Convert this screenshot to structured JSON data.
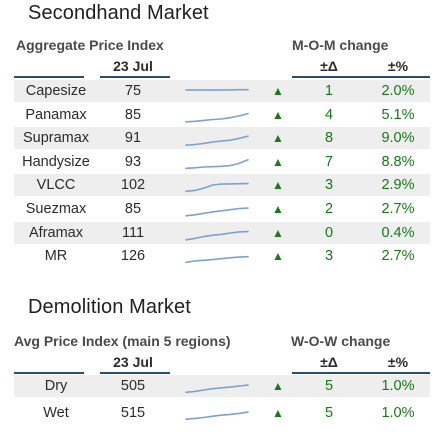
{
  "colors": {
    "header_rule": "#2a4d72",
    "positive": "#157a15",
    "spark": "#7fa1cf",
    "row_shade": "#eeeeee"
  },
  "secondhand": {
    "title": "Secondhand Market",
    "index_header": "Aggregate Price Index",
    "change_header": "M-O-M change",
    "date": "23 Jul",
    "delta_header": "±Δ",
    "pct_header": "±%",
    "rows": [
      {
        "name": "Capesize",
        "index": "75",
        "trend": "up",
        "delta": "1",
        "pct": "2.0%",
        "spark": [
          0.55,
          0.56,
          0.56,
          0.55,
          0.56,
          0.56,
          0.57,
          0.57
        ]
      },
      {
        "name": "Panamax",
        "index": "85",
        "trend": "up",
        "delta": "4",
        "pct": "5.1%",
        "spark": [
          0.12,
          0.15,
          0.2,
          0.25,
          0.28,
          0.35,
          0.45,
          0.58
        ]
      },
      {
        "name": "Supramax",
        "index": "91",
        "trend": "up",
        "delta": "8",
        "pct": "9.0%",
        "spark": [
          0.1,
          0.14,
          0.2,
          0.28,
          0.33,
          0.38,
          0.48,
          0.6
        ]
      },
      {
        "name": "Handysize",
        "index": "93",
        "trend": "up",
        "delta": "7",
        "pct": "8.8%",
        "spark": [
          0.15,
          0.18,
          0.22,
          0.24,
          0.26,
          0.3,
          0.42,
          0.62
        ]
      },
      {
        "name": "VLCC",
        "index": "102",
        "trend": "up",
        "delta": "3",
        "pct": "2.9%",
        "spark": [
          0.15,
          0.2,
          0.32,
          0.5,
          0.55,
          0.56,
          0.57,
          0.58
        ]
      },
      {
        "name": "Suezmax",
        "index": "85",
        "trend": "up",
        "delta": "2",
        "pct": "2.7%",
        "spark": [
          0.12,
          0.18,
          0.26,
          0.34,
          0.4,
          0.46,
          0.52,
          0.55
        ]
      },
      {
        "name": "Aframax",
        "index": "111",
        "trend": "up",
        "delta": "0",
        "pct": "0.4%",
        "spark": [
          0.12,
          0.2,
          0.3,
          0.38,
          0.42,
          0.5,
          0.56,
          0.58
        ]
      },
      {
        "name": "MR",
        "index": "126",
        "trend": "up",
        "delta": "3",
        "pct": "2.7%",
        "spark": [
          0.15,
          0.22,
          0.26,
          0.3,
          0.35,
          0.4,
          0.44,
          0.46
        ]
      }
    ]
  },
  "demolition": {
    "title": "Demolition Market",
    "index_header": "Avg Price Index (main 5 regions)",
    "change_header": "W-O-W change",
    "date": "23 Jul",
    "delta_header": "±Δ",
    "pct_header": "±%",
    "rows": [
      {
        "name": "Dry",
        "index": "505",
        "trend": "up",
        "delta": "5",
        "pct": "1.0%",
        "spark": [
          0.15,
          0.2,
          0.28,
          0.35,
          0.4,
          0.44,
          0.5,
          0.55
        ]
      },
      {
        "name": "Wet",
        "index": "515",
        "trend": "up",
        "delta": "5",
        "pct": "1.0%",
        "spark": [
          0.15,
          0.2,
          0.25,
          0.32,
          0.38,
          0.42,
          0.48,
          0.55
        ]
      }
    ]
  }
}
